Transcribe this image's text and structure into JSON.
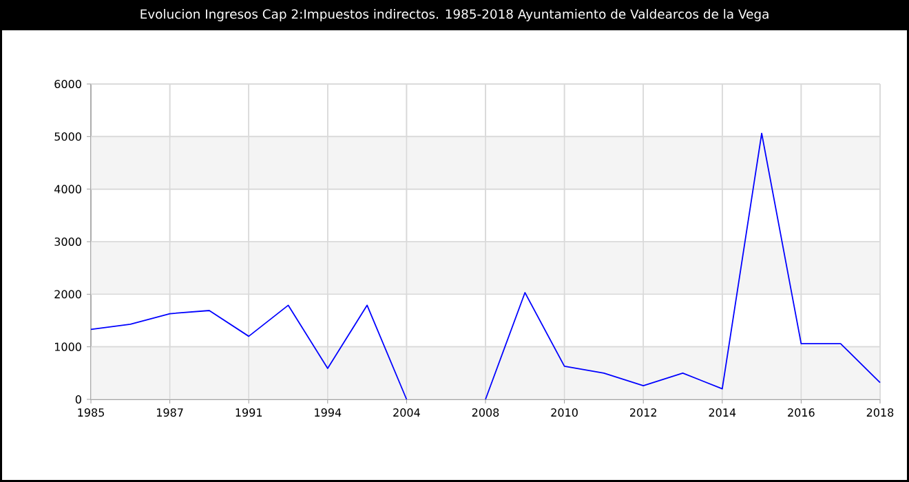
{
  "chart_data": {
    "type": "line",
    "title": "Evolucion Ingresos Cap 2:Impuestos indirectos. 1985-2018 Ayuntamiento de Valdearcos de la Vega",
    "categories": [
      "1985",
      null,
      "1987",
      null,
      "1991",
      null,
      "1994",
      null,
      "2004",
      null,
      "2008",
      null,
      "2010",
      null,
      "2012",
      null,
      "2014",
      null,
      "2016",
      null,
      "2018"
    ],
    "series": [
      {
        "color": "#0000ff",
        "values": [
          1330,
          1430,
          1630,
          1690,
          1200,
          1790,
          590,
          1790,
          0,
          null,
          0,
          2030,
          630,
          500,
          260,
          500,
          200,
          5060,
          1060,
          1060,
          320
        ]
      }
    ],
    "ylim": [
      0,
      6000
    ],
    "yticks": [
      0,
      1000,
      2000,
      3000,
      4000,
      5000,
      6000
    ],
    "grid": true,
    "bands": [
      {
        "axis": "y",
        "from": 0,
        "to": 1000,
        "color": "#f4f4f4"
      },
      {
        "axis": "y",
        "from": 2000,
        "to": 3000,
        "color": "#f4f4f4"
      },
      {
        "axis": "y",
        "from": 4000,
        "to": 5000,
        "color": "#f4f4f4"
      }
    ]
  }
}
